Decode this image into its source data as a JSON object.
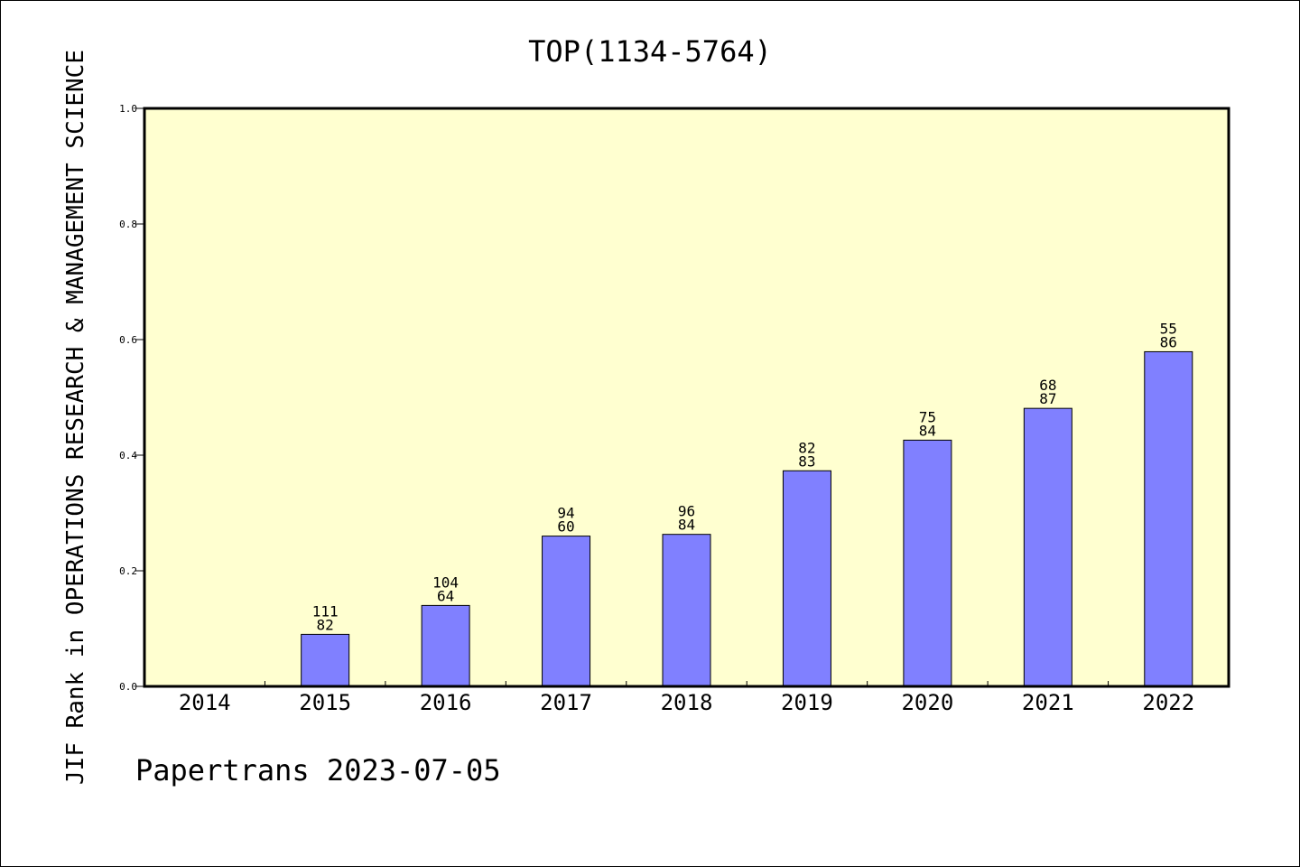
{
  "chart_data": {
    "type": "bar",
    "title": "TOP(1134-5764)",
    "xlabel": "",
    "ylabel": "JIF Rank in OPERATIONS RESEARCH & MANAGEMENT SCIENCE",
    "ylim": [
      0,
      1.0
    ],
    "yticks": [
      "0.0",
      "0.2",
      "0.4",
      "0.6",
      "0.8",
      "1.0"
    ],
    "categories": [
      "2014",
      "2015",
      "2016",
      "2017",
      "2018",
      "2019",
      "2020",
      "2021",
      "2022"
    ],
    "values": [
      null,
      0.09,
      0.14,
      0.26,
      0.263,
      0.373,
      0.426,
      0.481,
      0.579
    ],
    "bar_labels": [
      null,
      [
        "111",
        "82"
      ],
      [
        "104",
        "64"
      ],
      [
        "94",
        "60"
      ],
      [
        "96",
        "84"
      ],
      [
        "82",
        "83"
      ],
      [
        "75",
        "84"
      ],
      [
        "68",
        "87"
      ],
      [
        "55",
        "86"
      ]
    ],
    "grid": false,
    "colors": {
      "plot_background": "#ffffd0",
      "bar_fill": "#8080ff",
      "bar_stroke": "#000000"
    }
  },
  "footer": {
    "text": "Papertrans 2023-07-05"
  }
}
